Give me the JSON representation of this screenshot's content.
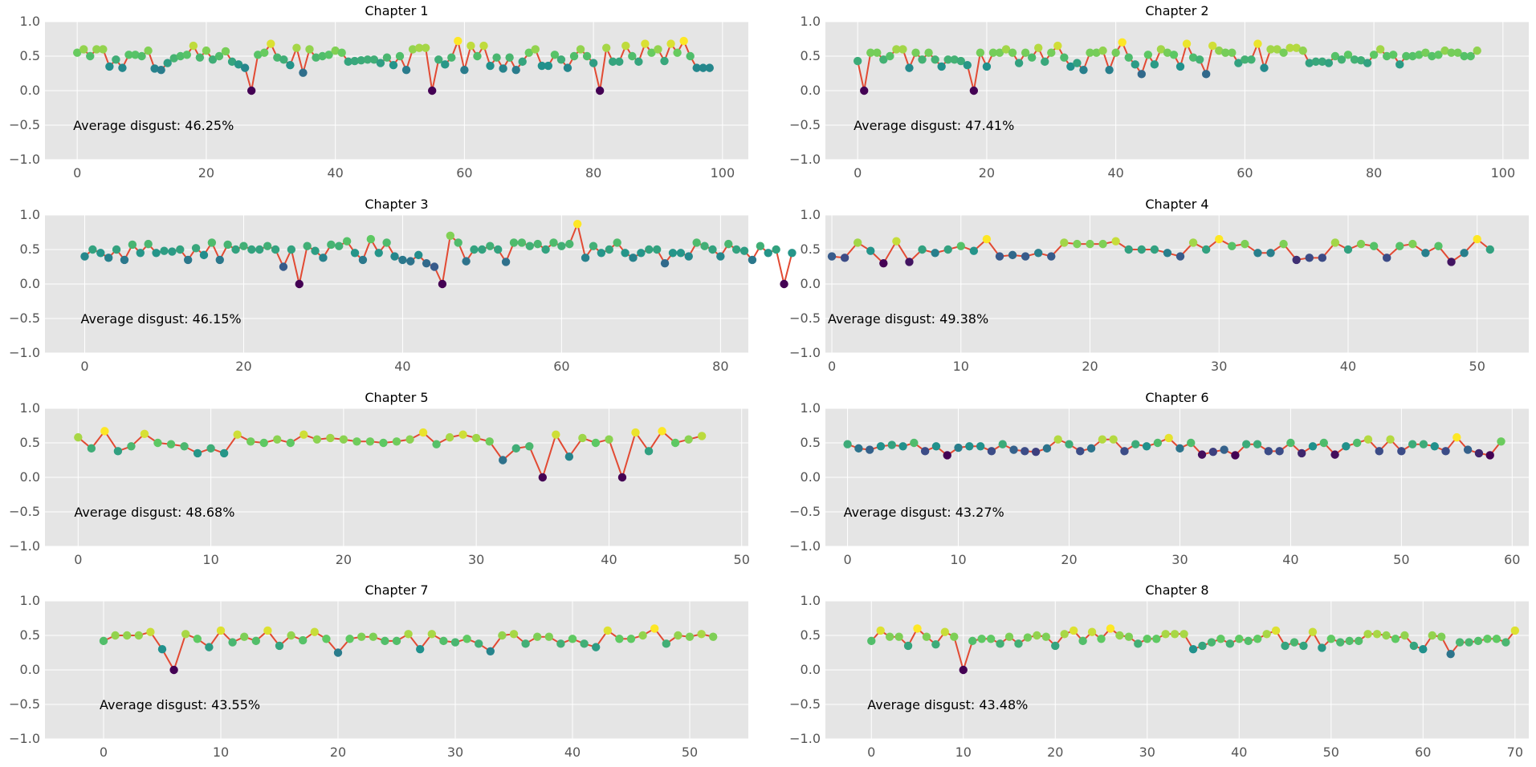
{
  "figure": {
    "background": "#ffffff",
    "plot_background": "#e5e5e5",
    "grid_color": "#ffffff",
    "line_color": "#e24a33",
    "tick_label_color": "#555555",
    "colormap": "viridis"
  },
  "chart_data": [
    {
      "type": "line",
      "title": "Chapter 1",
      "annotation": "Average disgust: 46.25%",
      "xlim": [
        -5,
        104
      ],
      "ylim": [
        -1.0,
        1.0
      ],
      "xticks": [
        0,
        20,
        40,
        60,
        80,
        100
      ],
      "yticks": [
        -1.0,
        -0.5,
        0.0,
        0.5,
        1.0
      ],
      "grid": true,
      "x_start": 0,
      "values": [
        0.55,
        0.6,
        0.5,
        0.6,
        0.6,
        0.35,
        0.45,
        0.33,
        0.52,
        0.52,
        0.5,
        0.58,
        0.32,
        0.3,
        0.4,
        0.47,
        0.5,
        0.52,
        0.65,
        0.48,
        0.58,
        0.45,
        0.5,
        0.57,
        0.42,
        0.38,
        0.33,
        0.0,
        0.52,
        0.55,
        0.68,
        0.48,
        0.45,
        0.37,
        0.62,
        0.26,
        0.6,
        0.48,
        0.5,
        0.52,
        0.58,
        0.55,
        0.42,
        0.43,
        0.44,
        0.45,
        0.45,
        0.4,
        0.48,
        0.37,
        0.5,
        0.3,
        0.6,
        0.62,
        0.62,
        0.0,
        0.45,
        0.38,
        0.48,
        0.72,
        0.3,
        0.65,
        0.5,
        0.65,
        0.36,
        0.48,
        0.32,
        0.48,
        0.3,
        0.42,
        0.55,
        0.6,
        0.36,
        0.36,
        0.52,
        0.45,
        0.33,
        0.5,
        0.6,
        0.5,
        0.4,
        0.0,
        0.62,
        0.42,
        0.42,
        0.65,
        0.5,
        0.42,
        0.68,
        0.55,
        0.6,
        0.43,
        0.68,
        0.55,
        0.72,
        0.5,
        0.33,
        0.33,
        0.33
      ]
    },
    {
      "type": "line",
      "title": "Chapter 2",
      "annotation": "Average disgust: 47.41%",
      "xlim": [
        -5,
        104
      ],
      "ylim": [
        -1.0,
        1.0
      ],
      "xticks": [
        0,
        20,
        40,
        60,
        80,
        100
      ],
      "yticks": [
        -1.0,
        -0.5,
        0.0,
        0.5,
        1.0
      ],
      "grid": true,
      "x_start": 0,
      "values": [
        0.43,
        0.0,
        0.55,
        0.55,
        0.45,
        0.5,
        0.6,
        0.6,
        0.33,
        0.55,
        0.45,
        0.55,
        0.45,
        0.35,
        0.45,
        0.45,
        0.43,
        0.37,
        0.0,
        0.55,
        0.35,
        0.55,
        0.55,
        0.6,
        0.55,
        0.4,
        0.55,
        0.48,
        0.62,
        0.42,
        0.55,
        0.65,
        0.48,
        0.35,
        0.4,
        0.3,
        0.55,
        0.55,
        0.58,
        0.3,
        0.55,
        0.7,
        0.48,
        0.38,
        0.24,
        0.52,
        0.38,
        0.6,
        0.55,
        0.52,
        0.35,
        0.68,
        0.48,
        0.45,
        0.24,
        0.65,
        0.58,
        0.55,
        0.55,
        0.4,
        0.45,
        0.45,
        0.68,
        0.33,
        0.6,
        0.6,
        0.55,
        0.62,
        0.62,
        0.58,
        0.4,
        0.42,
        0.42,
        0.4,
        0.5,
        0.45,
        0.52,
        0.45,
        0.44,
        0.4,
        0.52,
        0.6,
        0.5,
        0.52,
        0.38,
        0.5,
        0.5,
        0.52,
        0.55,
        0.5,
        0.52,
        0.58,
        0.55,
        0.55,
        0.5,
        0.5,
        0.58
      ]
    },
    {
      "type": "line",
      "title": "Chapter 3",
      "annotation": "Average disgust: 46.15%",
      "xlim": [
        -5,
        83.5
      ],
      "ylim": [
        -1.0,
        1.0
      ],
      "xticks": [
        0,
        20,
        40,
        60,
        80
      ],
      "yticks": [
        -1.0,
        -0.5,
        0.0,
        0.5,
        1.0
      ],
      "grid": true,
      "x_start": 0,
      "values": [
        0.4,
        0.5,
        0.45,
        0.38,
        0.5,
        0.35,
        0.57,
        0.45,
        0.58,
        0.45,
        0.48,
        0.47,
        0.5,
        0.35,
        0.52,
        0.42,
        0.6,
        0.35,
        0.57,
        0.5,
        0.55,
        0.5,
        0.5,
        0.55,
        0.5,
        0.25,
        0.5,
        0.0,
        0.55,
        0.48,
        0.38,
        0.57,
        0.55,
        0.62,
        0.45,
        0.35,
        0.65,
        0.45,
        0.6,
        0.4,
        0.35,
        0.33,
        0.42,
        0.3,
        0.25,
        0.0,
        0.7,
        0.6,
        0.33,
        0.5,
        0.5,
        0.55,
        0.5,
        0.32,
        0.6,
        0.6,
        0.55,
        0.58,
        0.5,
        0.6,
        0.55,
        0.58,
        0.87,
        0.38,
        0.55,
        0.45,
        0.5,
        0.6,
        0.45,
        0.38,
        0.45,
        0.5,
        0.5,
        0.3,
        0.45,
        0.45,
        0.4,
        0.6,
        0.55,
        0.5,
        0.4,
        0.58,
        0.5,
        0.48,
        0.35,
        0.55,
        0.45,
        0.5,
        0.0,
        0.45
      ]
    },
    {
      "type": "line",
      "title": "Chapter 4",
      "annotation": "Average disgust: 49.38%",
      "xlim": [
        -0.5,
        54
      ],
      "ylim": [
        -1.0,
        1.0
      ],
      "xticks": [
        0,
        10,
        20,
        30,
        40,
        50
      ],
      "yticks": [
        -1.0,
        -0.5,
        0.0,
        0.5,
        1.0
      ],
      "grid": true,
      "x_start": 0,
      "values": [
        0.4,
        0.38,
        0.6,
        0.48,
        0.3,
        0.62,
        0.32,
        0.5,
        0.45,
        0.5,
        0.55,
        0.48,
        0.65,
        0.4,
        0.42,
        0.4,
        0.45,
        0.4,
        0.6,
        0.58,
        0.58,
        0.58,
        0.62,
        0.5,
        0.5,
        0.5,
        0.45,
        0.4,
        0.6,
        0.5,
        0.65,
        0.55,
        0.58,
        0.45,
        0.45,
        0.58,
        0.35,
        0.38,
        0.38,
        0.6,
        0.5,
        0.58,
        0.55,
        0.38,
        0.55,
        0.58,
        0.45,
        0.55,
        0.32,
        0.45,
        0.65,
        0.5
      ]
    },
    {
      "type": "line",
      "title": "Chapter 5",
      "annotation": "Average disgust: 48.68%",
      "xlim": [
        -2.5,
        50.5
      ],
      "ylim": [
        -1.0,
        1.0
      ],
      "xticks": [
        0,
        10,
        20,
        30,
        40,
        50
      ],
      "yticks": [
        -1.0,
        -0.5,
        0.0,
        0.5,
        1.0
      ],
      "grid": true,
      "x_start": 0,
      "values": [
        0.58,
        0.42,
        0.67,
        0.38,
        0.45,
        0.63,
        0.5,
        0.48,
        0.45,
        0.35,
        0.42,
        0.35,
        0.62,
        0.52,
        0.5,
        0.55,
        0.5,
        0.62,
        0.55,
        0.57,
        0.55,
        0.52,
        0.52,
        0.5,
        0.52,
        0.55,
        0.65,
        0.48,
        0.58,
        0.62,
        0.57,
        0.52,
        0.25,
        0.42,
        0.45,
        0.0,
        0.62,
        0.3,
        0.57,
        0.5,
        0.55,
        0.0,
        0.65,
        0.38,
        0.67,
        0.5,
        0.55,
        0.6
      ]
    },
    {
      "type": "line",
      "title": "Chapter 6",
      "annotation": "Average disgust: 43.27%",
      "xlim": [
        -2,
        61.5
      ],
      "ylim": [
        -1.0,
        1.0
      ],
      "xticks": [
        0,
        10,
        20,
        30,
        40,
        50,
        60
      ],
      "yticks": [
        -1.0,
        -0.5,
        0.0,
        0.5,
        1.0
      ],
      "grid": true,
      "x_start": 0,
      "values": [
        0.48,
        0.42,
        0.4,
        0.45,
        0.47,
        0.45,
        0.5,
        0.38,
        0.45,
        0.32,
        0.43,
        0.45,
        0.45,
        0.38,
        0.48,
        0.4,
        0.38,
        0.37,
        0.42,
        0.55,
        0.48,
        0.38,
        0.42,
        0.55,
        0.55,
        0.38,
        0.48,
        0.45,
        0.5,
        0.57,
        0.42,
        0.5,
        0.33,
        0.37,
        0.4,
        0.32,
        0.48,
        0.48,
        0.38,
        0.38,
        0.5,
        0.35,
        0.45,
        0.5,
        0.33,
        0.45,
        0.5,
        0.55,
        0.38,
        0.55,
        0.38,
        0.48,
        0.48,
        0.45,
        0.38,
        0.58,
        0.4,
        0.35,
        0.32,
        0.52
      ]
    },
    {
      "type": "line",
      "title": "Chapter 7",
      "annotation": "Average disgust: 43.55%",
      "xlim": [
        -5,
        55
      ],
      "ylim": [
        -1.0,
        1.0
      ],
      "xticks": [
        0,
        10,
        20,
        30,
        40,
        50
      ],
      "yticks": [
        -1.0,
        -0.5,
        0.0,
        0.5,
        1.0
      ],
      "grid": true,
      "x_start": 0,
      "values": [
        0.42,
        0.5,
        0.5,
        0.5,
        0.55,
        0.3,
        0.0,
        0.52,
        0.45,
        0.33,
        0.57,
        0.4,
        0.48,
        0.42,
        0.57,
        0.35,
        0.5,
        0.43,
        0.55,
        0.45,
        0.25,
        0.45,
        0.48,
        0.48,
        0.42,
        0.42,
        0.52,
        0.3,
        0.52,
        0.42,
        0.4,
        0.45,
        0.38,
        0.27,
        0.5,
        0.52,
        0.38,
        0.48,
        0.48,
        0.38,
        0.45,
        0.38,
        0.33,
        0.57,
        0.45,
        0.45,
        0.5,
        0.6,
        0.38,
        0.5,
        0.48,
        0.52,
        0.48
      ]
    },
    {
      "type": "line",
      "title": "Chapter 8",
      "annotation": "Average disgust: 43.48%",
      "xlim": [
        -5,
        71.5
      ],
      "ylim": [
        -1.0,
        1.0
      ],
      "xticks": [
        0,
        10,
        20,
        30,
        40,
        50,
        60,
        70
      ],
      "yticks": [
        -1.0,
        -0.5,
        0.0,
        0.5,
        1.0
      ],
      "grid": true,
      "x_start": 0,
      "values": [
        0.42,
        0.57,
        0.48,
        0.48,
        0.35,
        0.6,
        0.48,
        0.37,
        0.55,
        0.48,
        0.0,
        0.42,
        0.45,
        0.45,
        0.38,
        0.48,
        0.38,
        0.47,
        0.5,
        0.48,
        0.35,
        0.52,
        0.57,
        0.42,
        0.55,
        0.45,
        0.6,
        0.5,
        0.48,
        0.38,
        0.45,
        0.45,
        0.52,
        0.52,
        0.52,
        0.3,
        0.35,
        0.4,
        0.45,
        0.38,
        0.45,
        0.42,
        0.45,
        0.52,
        0.57,
        0.35,
        0.4,
        0.35,
        0.55,
        0.32,
        0.45,
        0.4,
        0.42,
        0.42,
        0.52,
        0.52,
        0.5,
        0.45,
        0.5,
        0.35,
        0.3,
        0.5,
        0.48,
        0.23,
        0.4,
        0.4,
        0.42,
        0.45,
        0.45,
        0.4,
        0.57
      ]
    }
  ]
}
